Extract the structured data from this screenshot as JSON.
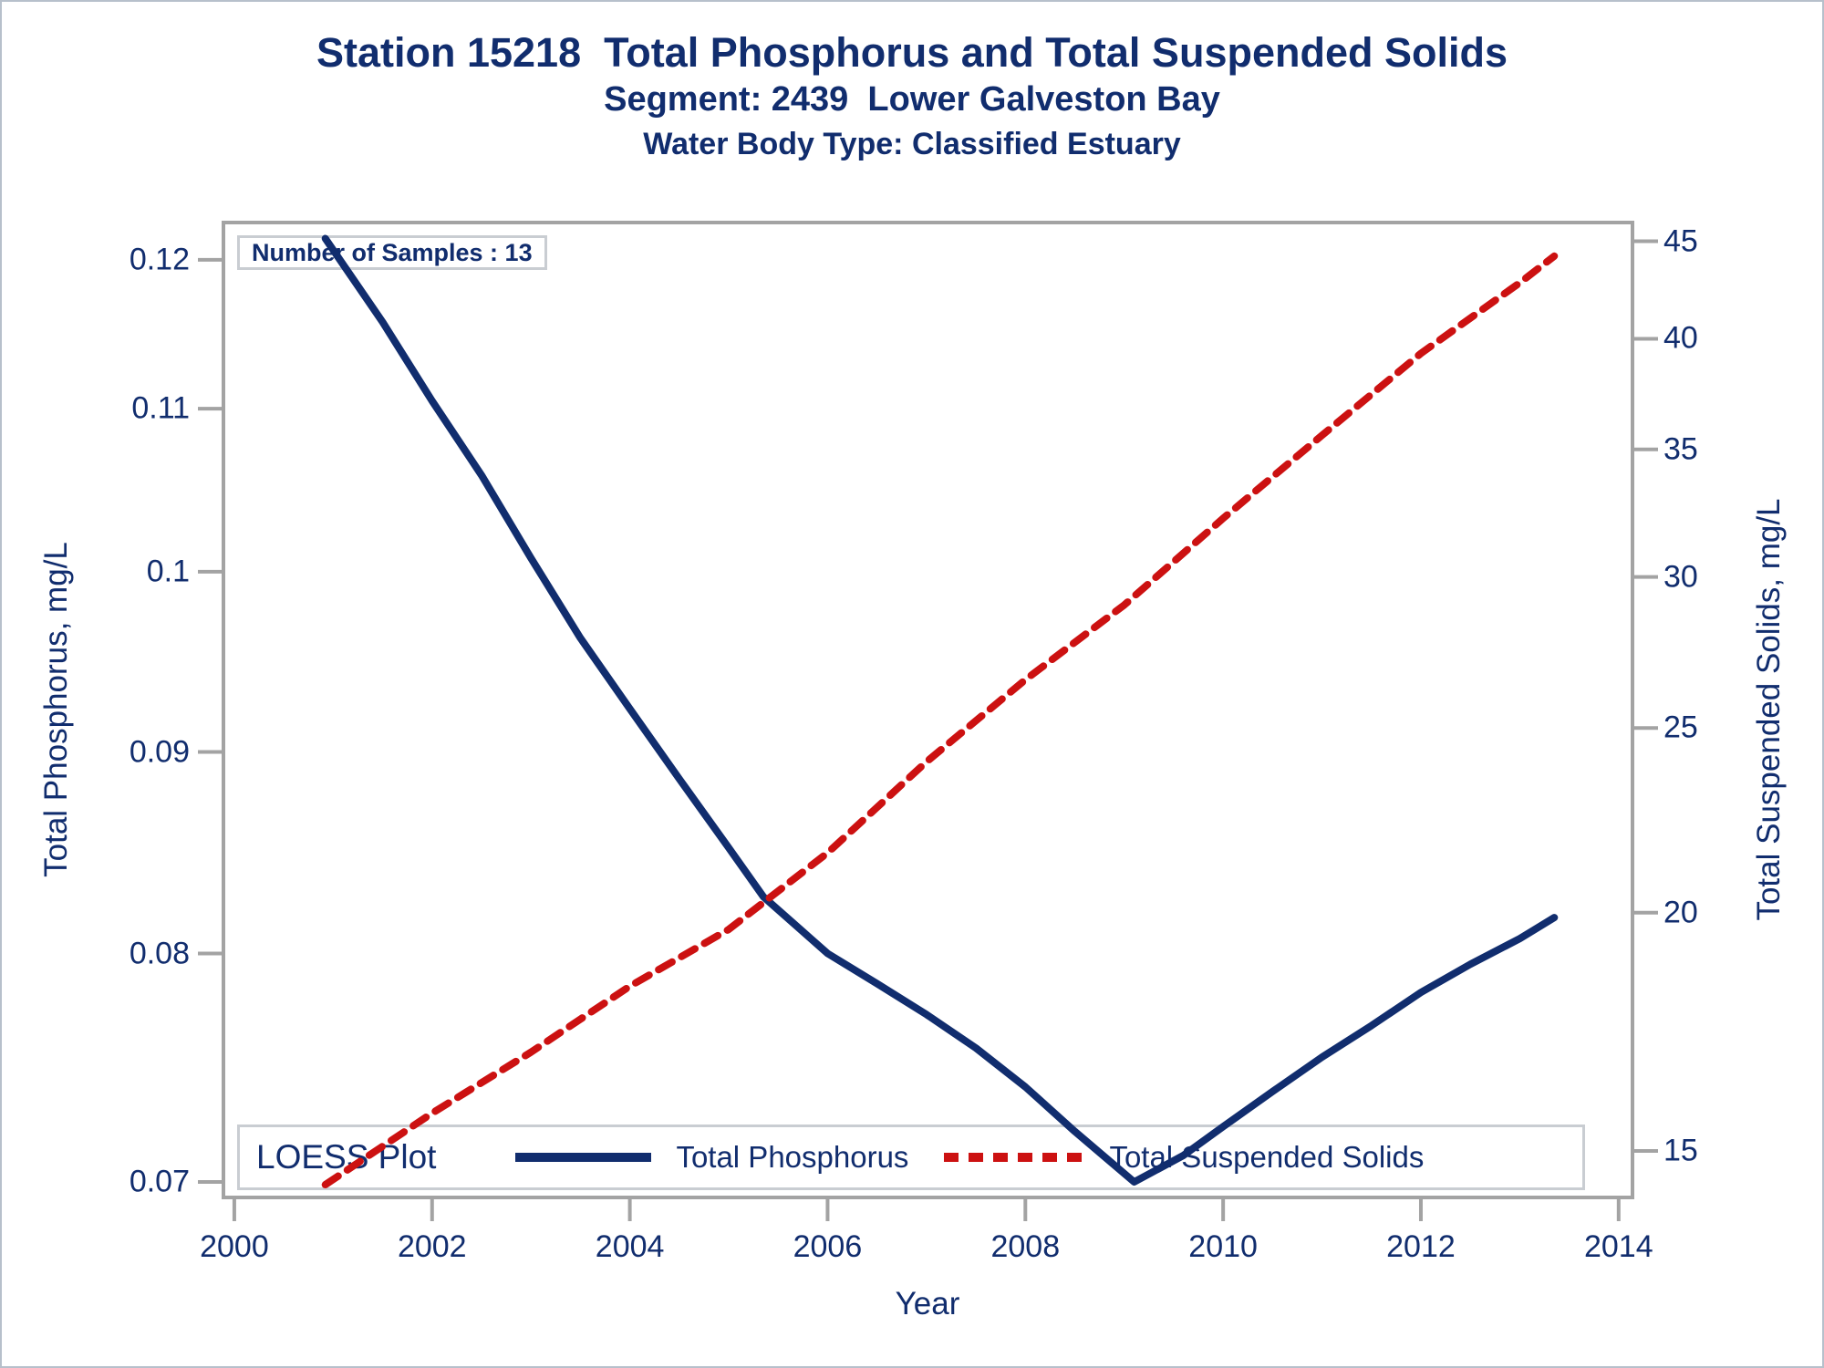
{
  "header": {
    "title": "Station 15218  Total Phosphorus and Total Suspended Solids",
    "subtitle": "Segment: 2439  Lower Galveston Bay",
    "subtitle2": "Water Body Type: Classified Estuary"
  },
  "plot": {
    "samples_label": "Number of Samples : 13"
  },
  "legend": {
    "title": "LOESS Plot",
    "entries": [
      {
        "label": "Total Phosphorus",
        "style": "solid",
        "color": "#112d6e"
      },
      {
        "label": "Total Suspended Solids",
        "style": "dashed",
        "color": "#cc1111"
      }
    ]
  },
  "colors": {
    "navy": "#112d6e",
    "red": "#cc1111",
    "axis_gray": "#a3a3a3",
    "box_border": "#c9cdd2",
    "frame_border": "#b7c0cb"
  },
  "chart_data": {
    "type": "line",
    "title": "Station 15218  Total Phosphorus and Total Suspended Solids",
    "subtitle": "Segment: 2439  Lower Galveston Bay",
    "subtitle2": "Water Body Type: Classified Estuary",
    "annotation": "Number of Samples : 13",
    "legend_title": "LOESS Plot",
    "legend_position": "bottom-inside",
    "grid": false,
    "x_axis": {
      "label": "Year",
      "scale": "linear",
      "range": [
        1999.89,
        2014.14
      ],
      "ticks": [
        2000,
        2002,
        2004,
        2006,
        2008,
        2010,
        2012,
        2014
      ]
    },
    "y_left": {
      "label": "Total Phosphorus, mg/L",
      "scale": "log",
      "range": [
        0.06937,
        0.12264
      ],
      "ticks": [
        {
          "v": 0.12,
          "label": "0.12"
        },
        {
          "v": 0.11,
          "label": "0.11"
        },
        {
          "v": 0.1,
          "label": "0.1"
        },
        {
          "v": 0.09,
          "label": "0.09"
        },
        {
          "v": 0.08,
          "label": "0.08"
        },
        {
          "v": 0.07,
          "label": "0.07"
        }
      ]
    },
    "y_right": {
      "label": "Total Suspended Solids, mg/L",
      "scale": "log",
      "range": [
        14.18,
        46.03
      ],
      "ticks": [
        {
          "v": 45,
          "label": "45"
        },
        {
          "v": 40,
          "label": "40"
        },
        {
          "v": 35,
          "label": "35"
        },
        {
          "v": 30,
          "label": "30"
        },
        {
          "v": 25,
          "label": "25"
        },
        {
          "v": 20,
          "label": "20"
        },
        {
          "v": 15,
          "label": "15"
        }
      ]
    },
    "series": [
      {
        "name": "Total Phosphorus",
        "axis": "left",
        "color": "#112d6e",
        "line_style": "solid",
        "points": [
          [
            2000.92,
            0.1215
          ],
          [
            2001.5,
            0.1157
          ],
          [
            2002.0,
            0.1105
          ],
          [
            2002.5,
            0.1058
          ],
          [
            2003.0,
            0.1008
          ],
          [
            2003.5,
            0.0962
          ],
          [
            2004.0,
            0.0923
          ],
          [
            2004.5,
            0.0886
          ],
          [
            2005.0,
            0.0851
          ],
          [
            2005.35,
            0.0827
          ],
          [
            2006.0,
            0.08
          ],
          [
            2006.5,
            0.0786
          ],
          [
            2007.0,
            0.0772
          ],
          [
            2007.5,
            0.0757
          ],
          [
            2008.0,
            0.074
          ],
          [
            2008.5,
            0.0721
          ],
          [
            2009.1,
            0.07
          ],
          [
            2009.6,
            0.0711
          ],
          [
            2010.0,
            0.0723
          ],
          [
            2010.5,
            0.0738
          ],
          [
            2011.0,
            0.0753
          ],
          [
            2011.5,
            0.0767
          ],
          [
            2012.0,
            0.0782
          ],
          [
            2012.5,
            0.0795
          ],
          [
            2013.0,
            0.0807
          ],
          [
            2013.35,
            0.0817
          ]
        ]
      },
      {
        "name": "Total Suspended Solids",
        "axis": "right",
        "color": "#cc1111",
        "line_style": "dashed",
        "points": [
          [
            2000.92,
            14.4
          ],
          [
            2002.0,
            15.7
          ],
          [
            2003.0,
            16.9
          ],
          [
            2004.0,
            18.3
          ],
          [
            2005.0,
            19.6
          ],
          [
            2006.0,
            21.5
          ],
          [
            2007.0,
            24.0
          ],
          [
            2008.0,
            26.5
          ],
          [
            2009.0,
            29.0
          ],
          [
            2010.0,
            32.2
          ],
          [
            2011.0,
            35.6
          ],
          [
            2012.0,
            39.3
          ],
          [
            2013.0,
            42.8
          ],
          [
            2013.35,
            44.2
          ]
        ]
      }
    ]
  }
}
